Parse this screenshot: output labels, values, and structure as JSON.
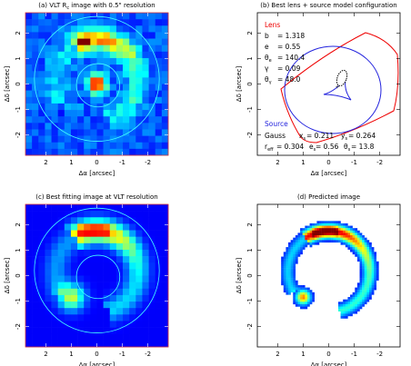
{
  "panels": [
    {
      "title": {
        "pre": "(a) VLT R",
        "sub": "c",
        "post": " image with 0.5\" resolution"
      },
      "xlabel": "Δα [arcsec]",
      "ylabel": "Δδ [arcsec]",
      "xlim": [
        2.8,
        -2.8
      ],
      "ylim": [
        -2.8,
        2.8
      ],
      "xticks": [
        2,
        1,
        0,
        -1,
        -2
      ],
      "yticks": [
        -2,
        -1,
        0,
        1,
        2
      ]
    },
    {
      "title": {
        "pre": "(b) Best lens + source model configuration"
      },
      "xlabel": "Δα [arcsec]",
      "ylabel": "Δδ [arcsec]",
      "xlim": [
        2.8,
        -2.8
      ],
      "ylim": [
        -2.8,
        2.8
      ],
      "xticks": [
        2,
        1,
        0,
        -1,
        -2
      ],
      "yticks": [
        -2,
        -1,
        0,
        1,
        2
      ],
      "lens": {
        "label": "Lens",
        "params": [
          {
            "sym": "b",
            "val": "= 1.318"
          },
          {
            "sym": "e",
            "val": "= 0.55"
          },
          {
            "sym": "θ",
            "sub": "e",
            "val": "= 140.4"
          },
          {
            "sym": "γ",
            "val": "= 0.09"
          },
          {
            "sym": "θ",
            "sub": "γ",
            "val": "= 48.0"
          }
        ]
      },
      "source": {
        "label": "Source",
        "model": "Gauss",
        "params": [
          {
            "sym": "x",
            "sub": "s",
            "val": "= 0.211"
          },
          {
            "sym": "y",
            "sub": "s",
            "val": "= 0.264"
          },
          {
            "sym": "r",
            "sub": "eff",
            "val": "= 0.304"
          },
          {
            "sym": "e",
            "sub": "s",
            "val": "= 0.56"
          },
          {
            "sym": "θ",
            "sub": "s",
            "val": "= 13.8"
          }
        ]
      }
    },
    {
      "title": {
        "pre": "(c) Best fitting image at VLT resolution"
      },
      "xlabel": "Δα [arcsec]",
      "ylabel": "Δδ [arcsec]",
      "xlim": [
        2.8,
        -2.8
      ],
      "ylim": [
        -2.8,
        2.8
      ],
      "xticks": [
        2,
        1,
        0,
        -1,
        -2
      ],
      "yticks": [
        -2,
        -1,
        0,
        1,
        2
      ]
    },
    {
      "title": {
        "pre": "(d) Predicted image"
      },
      "xlabel": "Δα [arcsec]",
      "ylabel": "Δδ [arcsec]",
      "xlim": [
        2.8,
        -2.8
      ],
      "ylim": [
        -2.8,
        2.8
      ],
      "xticks": [
        2,
        1,
        0,
        -1,
        -2
      ],
      "yticks": [
        -2,
        -1,
        0,
        1,
        2
      ]
    }
  ]
}
